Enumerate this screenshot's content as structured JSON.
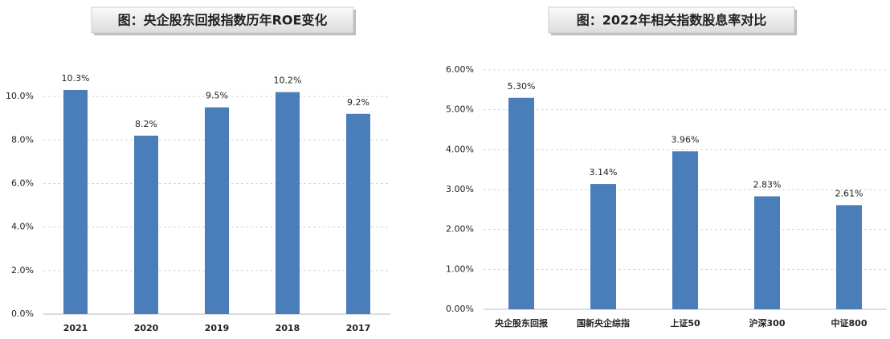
{
  "chart_data": [
    {
      "type": "bar",
      "title": "图：央企股东回报指数历年ROE变化",
      "categories": [
        "2021",
        "2020",
        "2019",
        "2018",
        "2017"
      ],
      "values": [
        10.3,
        8.2,
        9.5,
        10.2,
        9.2
      ],
      "value_labels": [
        "10.3%",
        "8.2%",
        "9.5%",
        "10.2%",
        "9.2%"
      ],
      "color": "#4a7ebb",
      "ylim": [
        0,
        11
      ],
      "yticks": [
        {
          "value": 0,
          "label": "0.0%"
        },
        {
          "value": 2,
          "label": "2.0%"
        },
        {
          "value": 4,
          "label": "4.0%"
        },
        {
          "value": 6,
          "label": "6.0%"
        },
        {
          "value": 8,
          "label": "8.0%"
        },
        {
          "value": 10,
          "label": "10.0%"
        }
      ],
      "grid": true
    },
    {
      "type": "bar",
      "title": "图：2022年相关指数股息率对比",
      "categories": [
        "央企股东回报",
        "国新央企综指",
        "上证50",
        "沪深300",
        "中证800"
      ],
      "values": [
        5.3,
        3.14,
        3.96,
        2.83,
        2.61
      ],
      "value_labels": [
        "5.30%",
        "3.14%",
        "3.96%",
        "2.83%",
        "2.61%"
      ],
      "color": "#4a7ebb",
      "ylim": [
        0,
        6
      ],
      "yticks": [
        {
          "value": 0,
          "label": "0.00%"
        },
        {
          "value": 1,
          "label": "1.00%"
        },
        {
          "value": 2,
          "label": "2.00%"
        },
        {
          "value": 3,
          "label": "3.00%"
        },
        {
          "value": 4,
          "label": "4.00%"
        },
        {
          "value": 5,
          "label": "5.00%"
        },
        {
          "value": 6,
          "label": "6.00%"
        }
      ],
      "grid": true
    }
  ]
}
